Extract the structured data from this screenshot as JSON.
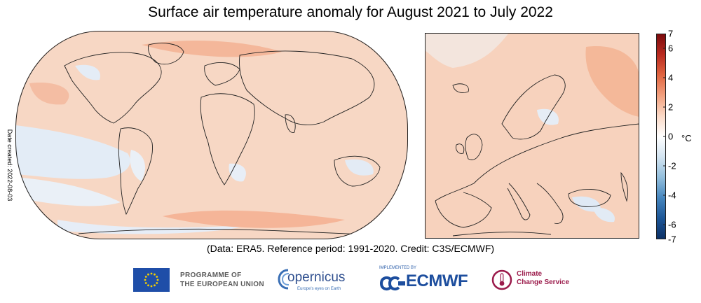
{
  "title": "Surface air temperature anomaly for August 2021 to July 2022",
  "date_created": "Date created: 2022-08-03",
  "credit": "(Data: ERA5.  Reference period: 1991-2020.  Credit: C3S/ECMWF)",
  "colorbar": {
    "unit": "°C",
    "min": -7,
    "max": 7,
    "ticks": [
      "7",
      "6",
      "4",
      "2",
      "0",
      "-2",
      "-4",
      "-6",
      "-7"
    ],
    "colors": [
      "#7a0a0c",
      "#b8291f",
      "#e06440",
      "#f2a07e",
      "#fbd9c6",
      "#ffffff",
      "#d3e4f1",
      "#92bedc",
      "#4585bd",
      "#1c5596",
      "#0b2f64"
    ]
  },
  "maps": {
    "world": {
      "name": "global-map",
      "dominant_color": "#f8d3bd",
      "cool_color": "#dde9f5"
    },
    "europe": {
      "name": "europe-map",
      "dominant_color": "#f6c7ad",
      "cool_color": "#dde9f5"
    }
  },
  "logos": {
    "eu_line1": "PROGRAMME OF",
    "eu_line2": "THE EUROPEAN UNION",
    "copernicus_name": "opernicus",
    "copernicus_tagline": "Europe's eyes on Earth",
    "ecmwf_small": "IMPLEMENTED BY",
    "ecmwf_name": "ECMWF",
    "c3s_line1": "Climate",
    "c3s_line2": "Change Service"
  }
}
